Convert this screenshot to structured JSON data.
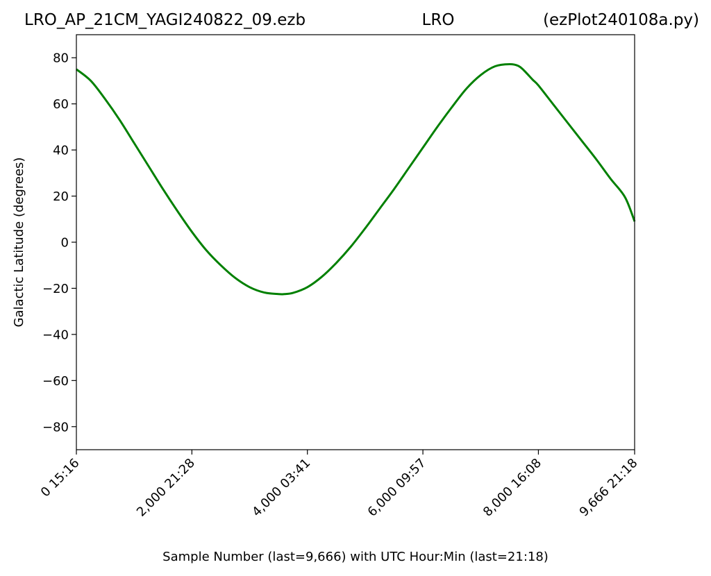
{
  "header": {
    "left": "LRO_AP_21CM_YAGI240822_09.ezb",
    "center": "LRO",
    "right": "(ezPlot240108a.py)"
  },
  "chart_data": {
    "type": "line",
    "xlabel": "Sample Number (last=9,666) with UTC Hour:Min (last=21:18)",
    "ylabel": "Galactic Latitude (degrees)",
    "xlim": [
      0,
      9666
    ],
    "ylim": [
      -90,
      90
    ],
    "grid": false,
    "x_ticks": [
      {
        "value": 0,
        "label": "0  15:16"
      },
      {
        "value": 2000,
        "label": "2,000  21:28"
      },
      {
        "value": 4000,
        "label": "4,000  03:41"
      },
      {
        "value": 6000,
        "label": "6,000  09:57"
      },
      {
        "value": 8000,
        "label": "8,000  16:08"
      },
      {
        "value": 9666,
        "label": "9,666  21:18"
      }
    ],
    "y_ticks": [
      {
        "value": 80,
        "label": "80"
      },
      {
        "value": 60,
        "label": "60"
      },
      {
        "value": 40,
        "label": "40"
      },
      {
        "value": 20,
        "label": "20"
      },
      {
        "value": 0,
        "label": "0"
      },
      {
        "value": -20,
        "label": "−20"
      },
      {
        "value": -40,
        "label": "−40"
      },
      {
        "value": -60,
        "label": "−60"
      },
      {
        "value": -80,
        "label": "−80"
      }
    ],
    "series": [
      {
        "color": "#008000",
        "x": [
          0,
          250,
          500,
          750,
          1000,
          1250,
          1500,
          1750,
          2000,
          2250,
          2500,
          2750,
          3000,
          3250,
          3500,
          3600,
          3750,
          4000,
          4250,
          4500,
          4750,
          5000,
          5250,
          5500,
          5750,
          6000,
          6250,
          6500,
          6750,
          7000,
          7250,
          7500,
          7650,
          7750,
          7900,
          8000,
          8250,
          8500,
          8750,
          9000,
          9250,
          9500,
          9666
        ],
        "y": [
          75,
          70,
          62,
          53,
          43,
          33,
          23,
          13.5,
          4.5,
          -3.5,
          -10,
          -15.5,
          -19.5,
          -21.8,
          -22.5,
          -22.5,
          -22,
          -19.5,
          -15,
          -9,
          -2,
          6,
          14.5,
          23,
          32,
          41,
          50,
          58.5,
          66.5,
          72.5,
          76.3,
          77.2,
          76.5,
          74.5,
          70.5,
          68,
          60,
          52,
          44,
          36,
          27.5,
          19.5,
          9
        ]
      }
    ]
  }
}
